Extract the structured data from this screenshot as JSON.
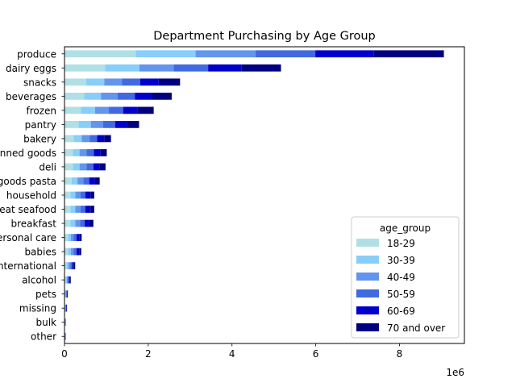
{
  "chart_data": {
    "type": "bar",
    "orientation": "horizontal",
    "stacked": true,
    "title": "Department Purchasing by Age Group",
    "xlabel": "",
    "ylabel": "",
    "x_offset_label": "1e6",
    "xlim": [
      0,
      9.55
    ],
    "xticks": [
      0,
      2,
      4,
      6,
      8
    ],
    "grid": false,
    "legend_title": "age_group",
    "legend_position": "lower right",
    "categories": [
      "produce",
      "dairy eggs",
      "snacks",
      "beverages",
      "frozen",
      "pantry",
      "bakery",
      "canned goods",
      "deli",
      "dry goods pasta",
      "household",
      "meat seafood",
      "breakfast",
      "personal care",
      "babies",
      "international",
      "alcohol",
      "pets",
      "missing",
      "bulk",
      "other"
    ],
    "series": [
      {
        "name": "18-29",
        "color": "#b0e0e6",
        "values": [
          1.7,
          0.97,
          0.52,
          0.47,
          0.39,
          0.34,
          0.22,
          0.2,
          0.2,
          0.17,
          0.14,
          0.14,
          0.14,
          0.08,
          0.08,
          0.05,
          0.03,
          0.01,
          0.01,
          0.005,
          0.005
        ]
      },
      {
        "name": "30-39",
        "color": "#87cefa",
        "values": [
          1.43,
          0.82,
          0.43,
          0.4,
          0.34,
          0.29,
          0.19,
          0.16,
          0.16,
          0.14,
          0.12,
          0.12,
          0.12,
          0.07,
          0.07,
          0.045,
          0.025,
          0.015,
          0.01,
          0.005,
          0.005
        ]
      },
      {
        "name": "40-49",
        "color": "#6495ed",
        "values": [
          1.43,
          0.82,
          0.42,
          0.4,
          0.33,
          0.29,
          0.19,
          0.17,
          0.17,
          0.14,
          0.12,
          0.12,
          0.11,
          0.07,
          0.07,
          0.045,
          0.025,
          0.015,
          0.01,
          0.005,
          0.005
        ]
      },
      {
        "name": "50-59",
        "color": "#4169e1",
        "values": [
          1.43,
          0.82,
          0.44,
          0.41,
          0.34,
          0.29,
          0.18,
          0.17,
          0.16,
          0.14,
          0.12,
          0.12,
          0.11,
          0.07,
          0.07,
          0.045,
          0.025,
          0.015,
          0.01,
          0.005,
          0.005
        ]
      },
      {
        "name": "60-69",
        "color": "#0000cd",
        "values": [
          1.4,
          0.8,
          0.44,
          0.41,
          0.34,
          0.28,
          0.17,
          0.16,
          0.15,
          0.14,
          0.12,
          0.12,
          0.11,
          0.07,
          0.07,
          0.04,
          0.025,
          0.015,
          0.01,
          0.005,
          0.005
        ]
      },
      {
        "name": "70 and over",
        "color": "#000080",
        "values": [
          1.67,
          0.94,
          0.51,
          0.47,
          0.39,
          0.29,
          0.16,
          0.15,
          0.14,
          0.11,
          0.09,
          0.09,
          0.1,
          0.05,
          0.04,
          0.03,
          0.02,
          0.01,
          0.01,
          0.005,
          0.005
        ]
      }
    ]
  }
}
